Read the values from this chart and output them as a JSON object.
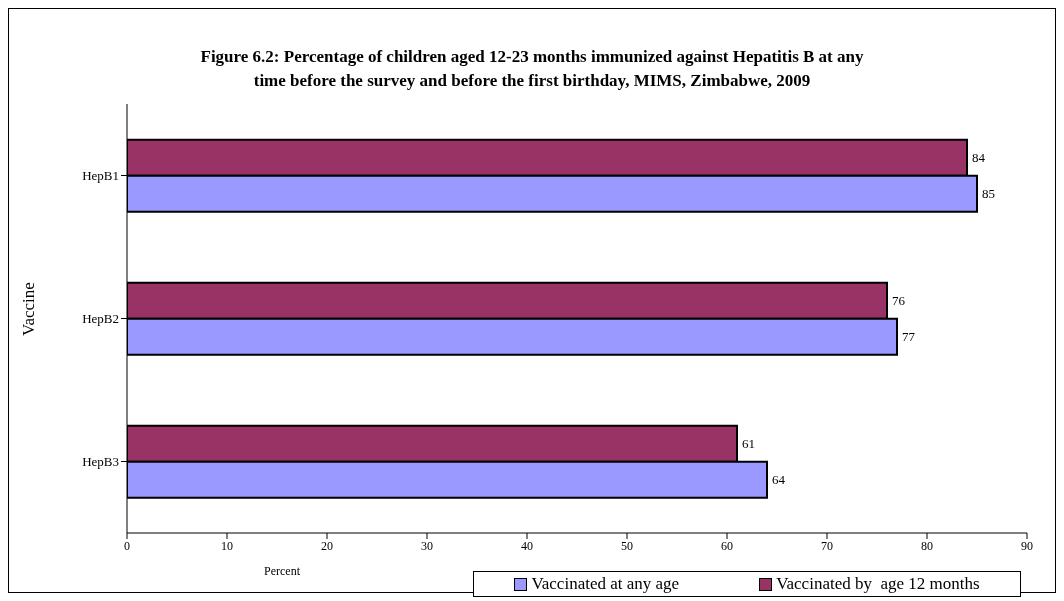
{
  "chart_data": {
    "type": "bar",
    "orientation": "horizontal",
    "title": "Figure 6.2: Percentage of children aged 12-23 months immunized against Hepatitis B at any time before the survey and before the first birthday, MIMS, Zimbabwe, 2009",
    "xlabel": "Percent",
    "ylabel": "Vaccine",
    "categories": [
      "HepB1",
      "HepB2",
      "HepB3"
    ],
    "series": [
      {
        "name": "Vaccinated at any age",
        "color": "#9999ff",
        "values": [
          85,
          77,
          64
        ]
      },
      {
        "name": "Vaccinated by  age 12 months",
        "color": "#993366",
        "values": [
          84,
          76,
          61
        ]
      }
    ],
    "xlim": [
      0,
      90
    ],
    "xticks": [
      0,
      10,
      20,
      30,
      40,
      50,
      60,
      70,
      80,
      90
    ],
    "legend": "bottom",
    "data_labels": true
  }
}
